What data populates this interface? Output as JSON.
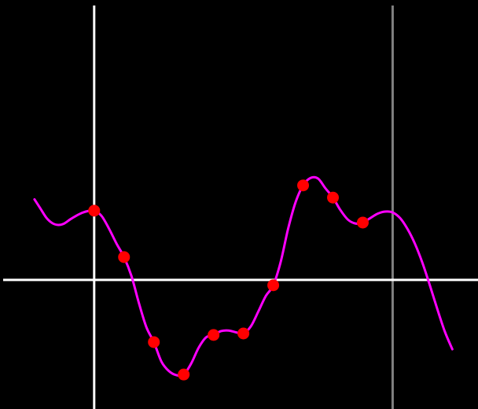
{
  "chart_data": {
    "type": "line",
    "title": "",
    "xlabel": "",
    "ylabel": "",
    "grid": false,
    "x_axis_at_y": 0,
    "y_axis_at_x": 0,
    "marker_line_at_x": 1,
    "xlim": [
      -0.305,
      1.286
    ],
    "ylim": [
      -0.434,
      0.923
    ],
    "colors": {
      "background": "#000000",
      "axis": "#ffffff",
      "marker_line": "#808080",
      "curve": "#ff00ff",
      "points": "#ff0000"
    },
    "points": {
      "x": [
        0.0,
        0.1,
        0.2,
        0.3,
        0.4,
        0.5,
        0.6,
        0.7,
        0.8,
        0.9
      ],
      "y": [
        0.233,
        0.077,
        -0.209,
        -0.318,
        -0.185,
        -0.18,
        -0.018,
        0.318,
        0.277,
        0.193
      ]
    },
    "curve": {
      "x": [
        -0.2,
        -0.18,
        -0.16,
        -0.14,
        -0.12,
        -0.1,
        -0.08,
        -0.06,
        -0.04,
        -0.02,
        0.0,
        0.025,
        0.05,
        0.075,
        0.1,
        0.125,
        0.15,
        0.175,
        0.2,
        0.225,
        0.25,
        0.275,
        0.3,
        0.325,
        0.35,
        0.375,
        0.4,
        0.425,
        0.45,
        0.475,
        0.5,
        0.525,
        0.55,
        0.575,
        0.6,
        0.625,
        0.65,
        0.675,
        0.7,
        0.725,
        0.75,
        0.775,
        0.8,
        0.825,
        0.85,
        0.875,
        0.9,
        0.925,
        0.95,
        0.975,
        1.0,
        1.025,
        1.05,
        1.075,
        1.1,
        1.125,
        1.15,
        1.175,
        1.2
      ],
      "y": [
        0.271,
        0.24,
        0.209,
        0.191,
        0.185,
        0.19,
        0.204,
        0.216,
        0.226,
        0.232,
        0.233,
        0.215,
        0.172,
        0.122,
        0.077,
        0.013,
        -0.078,
        -0.159,
        -0.209,
        -0.274,
        -0.306,
        -0.32,
        -0.318,
        -0.281,
        -0.228,
        -0.193,
        -0.185,
        -0.172,
        -0.17,
        -0.176,
        -0.18,
        -0.156,
        -0.106,
        -0.054,
        -0.018,
        0.061,
        0.173,
        0.262,
        0.318,
        0.343,
        0.341,
        0.308,
        0.277,
        0.235,
        0.203,
        0.19,
        0.193,
        0.208,
        0.223,
        0.23,
        0.227,
        0.208,
        0.171,
        0.121,
        0.057,
        -0.019,
        -0.099,
        -0.174,
        -0.233
      ]
    }
  }
}
